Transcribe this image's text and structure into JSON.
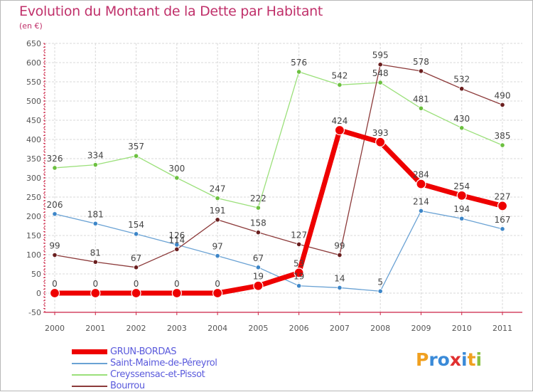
{
  "title": "Evolution du Montant de la Dette par Habitant",
  "subtitle": "(en €)",
  "logo_text": "Proxiti",
  "colors": {
    "title": "#c0306a",
    "grid": "#d8d8d8",
    "axis": "#cc2244",
    "label": "#555555",
    "legend_text": "#5a5adc"
  },
  "chart_data": {
    "type": "line",
    "categories": [
      "2000",
      "2001",
      "2002",
      "2003",
      "2004",
      "2005",
      "2006",
      "2007",
      "2008",
      "2009",
      "2010",
      "2011"
    ],
    "ylim": [
      -50,
      650
    ],
    "yticks": [
      -50,
      0,
      50,
      100,
      150,
      200,
      250,
      300,
      350,
      400,
      450,
      500,
      550,
      600,
      650
    ],
    "grid": true,
    "legend_position": "bottom",
    "series": [
      {
        "name": "GRUN-BORDAS",
        "values": [
          0,
          0,
          0,
          0,
          0,
          19,
          53,
          424,
          393,
          284,
          254,
          227
        ],
        "color": "#ee0000",
        "point_color": "#ee0000",
        "emphasis": true
      },
      {
        "name": "Saint-Maime-de-Péreyrol",
        "values": [
          206,
          181,
          154,
          126,
          97,
          67,
          19,
          14,
          5,
          214,
          194,
          167
        ],
        "color": "#6aa2d4",
        "point_color": "#3d86c8",
        "emphasis": false
      },
      {
        "name": "Creyssensac-et-Pissot",
        "values": [
          326,
          334,
          357,
          300,
          247,
          222,
          576,
          542,
          548,
          481,
          430,
          385
        ],
        "color": "#9be07a",
        "point_color": "#6cc040",
        "emphasis": false
      },
      {
        "name": "Bourrou",
        "values": [
          99,
          81,
          67,
          114,
          191,
          158,
          127,
          99,
          595,
          578,
          532,
          490
        ],
        "color": "#8c3a3a",
        "point_color": "#6a1f1f",
        "emphasis": false
      }
    ]
  }
}
